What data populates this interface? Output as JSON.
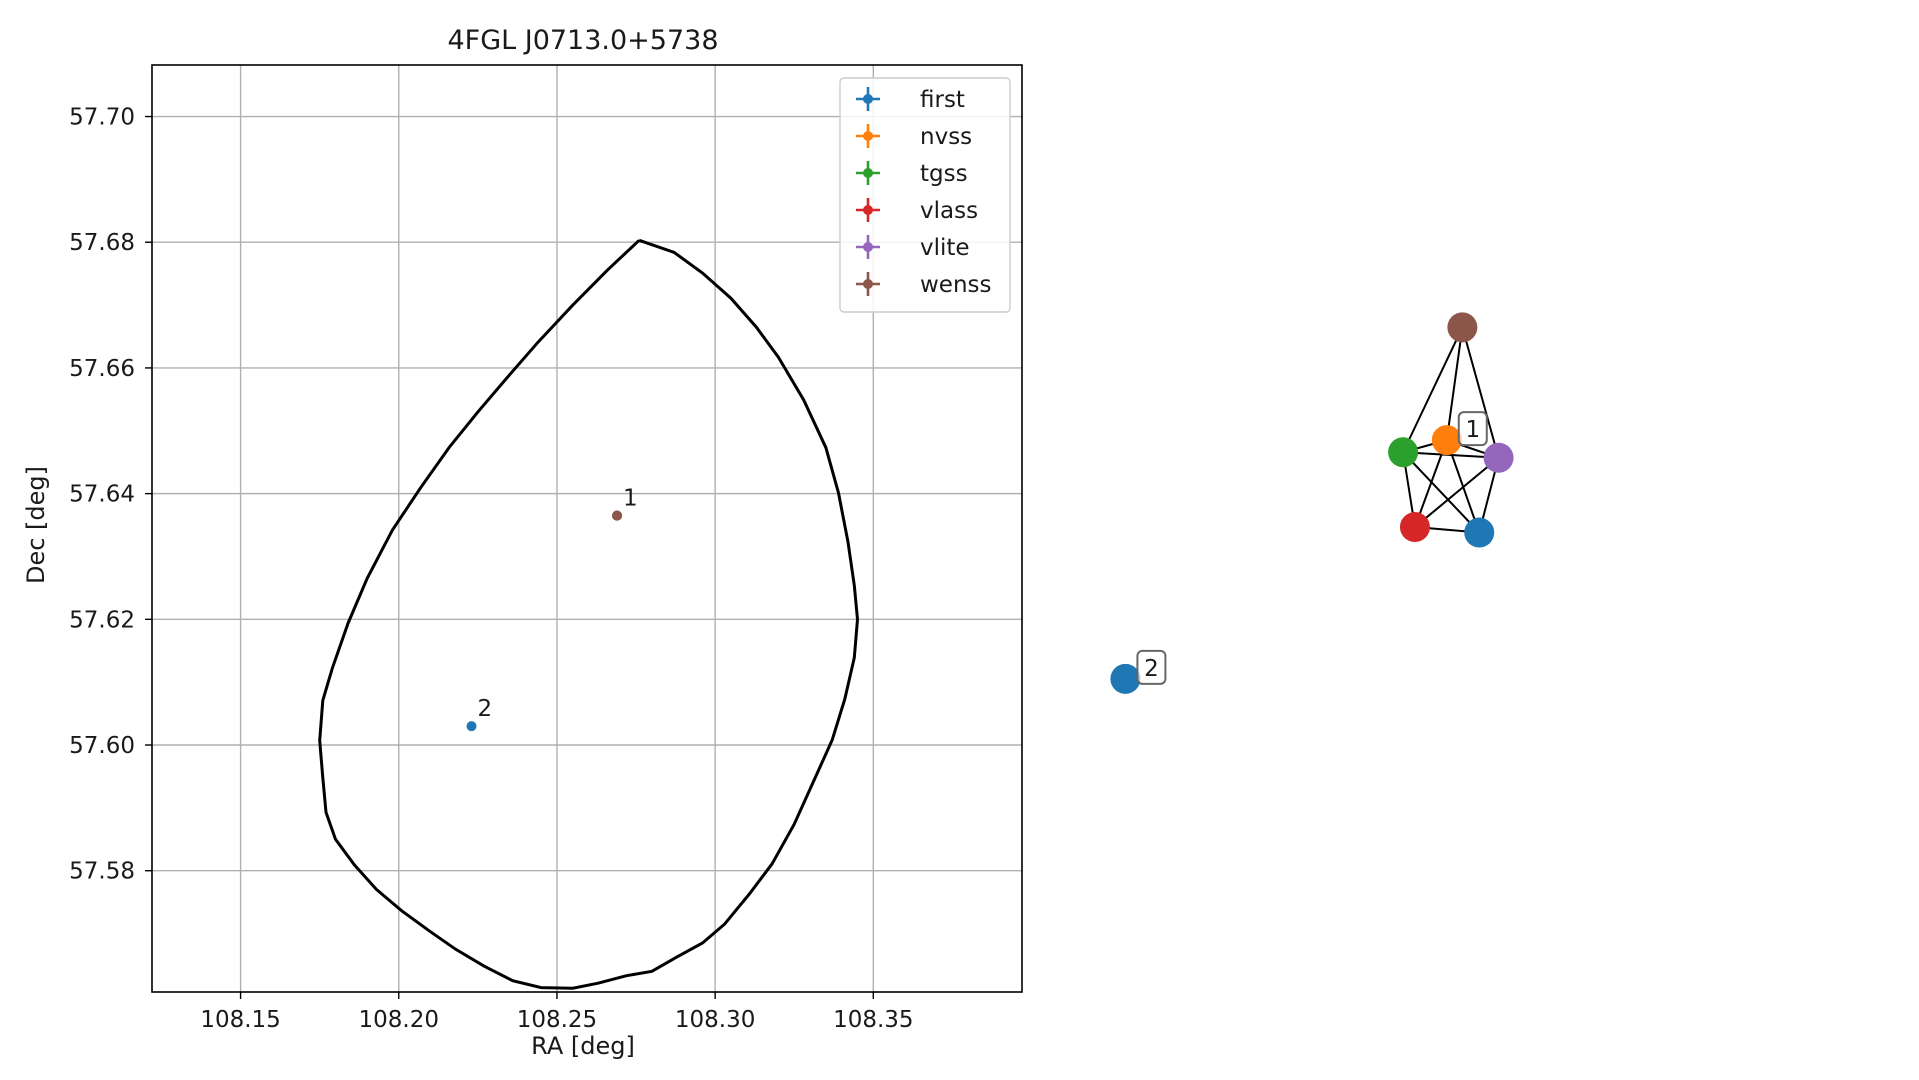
{
  "chart_data": [
    {
      "type": "scatter",
      "title": "4FGL J0713.0+5738",
      "xlabel": "RA [deg]",
      "ylabel": "Dec [deg]",
      "xlim": [
        108.122,
        108.397
      ],
      "ylim": [
        57.5607,
        57.7082
      ],
      "xticks": [
        108.15,
        108.2,
        108.25,
        108.3,
        108.35
      ],
      "xtick_labels": [
        "108.15",
        "108.20",
        "108.25",
        "108.30",
        "108.35"
      ],
      "yticks": [
        57.58,
        57.6,
        57.62,
        57.64,
        57.66,
        57.68,
        57.7
      ],
      "ytick_labels": [
        "57.58",
        "57.60",
        "57.62",
        "57.64",
        "57.66",
        "57.68",
        "57.70"
      ],
      "grid": true,
      "legend_position": "top-right",
      "error_ellipse": {
        "points": [
          [
            108.276,
            57.6803
          ],
          [
            108.287,
            57.6784
          ],
          [
            108.296,
            57.6751
          ],
          [
            108.305,
            57.6711
          ],
          [
            108.313,
            57.6665
          ],
          [
            108.32,
            57.6617
          ],
          [
            108.328,
            57.6549
          ],
          [
            108.335,
            57.6473
          ],
          [
            108.339,
            57.6401
          ],
          [
            108.342,
            57.6323
          ],
          [
            108.344,
            57.6254
          ],
          [
            108.345,
            57.62
          ],
          [
            108.344,
            57.6139
          ],
          [
            108.341,
            57.6073
          ],
          [
            108.337,
            57.6008
          ],
          [
            108.331,
            57.5941
          ],
          [
            108.325,
            57.5874
          ],
          [
            108.318,
            57.5811
          ],
          [
            108.311,
            57.5764
          ],
          [
            108.303,
            57.5715
          ],
          [
            108.296,
            57.5685
          ],
          [
            108.288,
            57.5663
          ],
          [
            108.28,
            57.564
          ],
          [
            108.272,
            57.5633
          ],
          [
            108.263,
            57.5621
          ],
          [
            108.255,
            57.5613
          ],
          [
            108.245,
            57.5614
          ],
          [
            108.236,
            57.5625
          ],
          [
            108.227,
            57.5648
          ],
          [
            108.218,
            57.5675
          ],
          [
            108.21,
            57.5703
          ],
          [
            108.201,
            57.5736
          ],
          [
            108.193,
            57.577
          ],
          [
            108.186,
            57.5809
          ],
          [
            108.18,
            57.585
          ],
          [
            108.177,
            57.5893
          ],
          [
            108.176,
            57.5948
          ],
          [
            108.175,
            57.6007
          ],
          [
            108.176,
            57.6071
          ],
          [
            108.179,
            57.6122
          ],
          [
            108.184,
            57.6194
          ],
          [
            108.19,
            57.6265
          ],
          [
            108.198,
            57.6342
          ],
          [
            108.207,
            57.641
          ],
          [
            108.216,
            57.6474
          ],
          [
            108.225,
            57.653
          ],
          [
            108.234,
            57.6583
          ],
          [
            108.244,
            57.6641
          ],
          [
            108.255,
            57.67
          ],
          [
            108.266,
            57.6756
          ],
          [
            108.276,
            57.6803
          ]
        ]
      },
      "series": [
        {
          "name": "first",
          "color": "#1f77b4",
          "x": [
            108.269,
            108.223
          ],
          "y": [
            57.6365,
            57.603
          ]
        },
        {
          "name": "nvss",
          "color": "#ff7f0e",
          "x": [
            108.269
          ],
          "y": [
            57.6365
          ]
        },
        {
          "name": "tgss",
          "color": "#2ca02c",
          "x": [
            108.269
          ],
          "y": [
            57.6365
          ]
        },
        {
          "name": "vlass",
          "color": "#d62728",
          "x": [
            108.269
          ],
          "y": [
            57.6365
          ]
        },
        {
          "name": "vlite",
          "color": "#9467bd",
          "x": [
            108.269
          ],
          "y": [
            57.6365
          ]
        },
        {
          "name": "wenss",
          "color": "#8c564b",
          "x": [
            108.269
          ],
          "y": [
            57.6365
          ]
        }
      ],
      "annotations": [
        {
          "text": "1",
          "x": 108.269,
          "y": 57.6365
        },
        {
          "text": "2",
          "x": 108.223,
          "y": 57.603
        }
      ]
    },
    {
      "type": "network",
      "xlim": [
        0,
        1
      ],
      "ylim": [
        0,
        1
      ],
      "nodes": [
        {
          "id": "wenss",
          "color": "#8c564b",
          "x": 0.632,
          "y": 0.932
        },
        {
          "id": "nvss",
          "color": "#ff7f0e",
          "x": 0.607,
          "y": 0.727
        },
        {
          "id": "tgss",
          "color": "#2ca02c",
          "x": 0.537,
          "y": 0.705
        },
        {
          "id": "vlite",
          "color": "#9467bd",
          "x": 0.69,
          "y": 0.695
        },
        {
          "id": "vlass",
          "color": "#d62728",
          "x": 0.556,
          "y": 0.569
        },
        {
          "id": "first",
          "color": "#1f77b4",
          "x": 0.659,
          "y": 0.559
        },
        {
          "id": "first",
          "color": "#1f77b4",
          "x": 0.092,
          "y": 0.293
        }
      ],
      "edges": [
        [
          0,
          1
        ],
        [
          0,
          2
        ],
        [
          0,
          3
        ],
        [
          1,
          2
        ],
        [
          1,
          3
        ],
        [
          1,
          4
        ],
        [
          1,
          5
        ],
        [
          2,
          3
        ],
        [
          2,
          4
        ],
        [
          2,
          5
        ],
        [
          3,
          4
        ],
        [
          3,
          5
        ],
        [
          4,
          5
        ]
      ],
      "labels": [
        {
          "text": "1",
          "node": 1
        },
        {
          "text": "2",
          "node": 6
        }
      ]
    }
  ]
}
